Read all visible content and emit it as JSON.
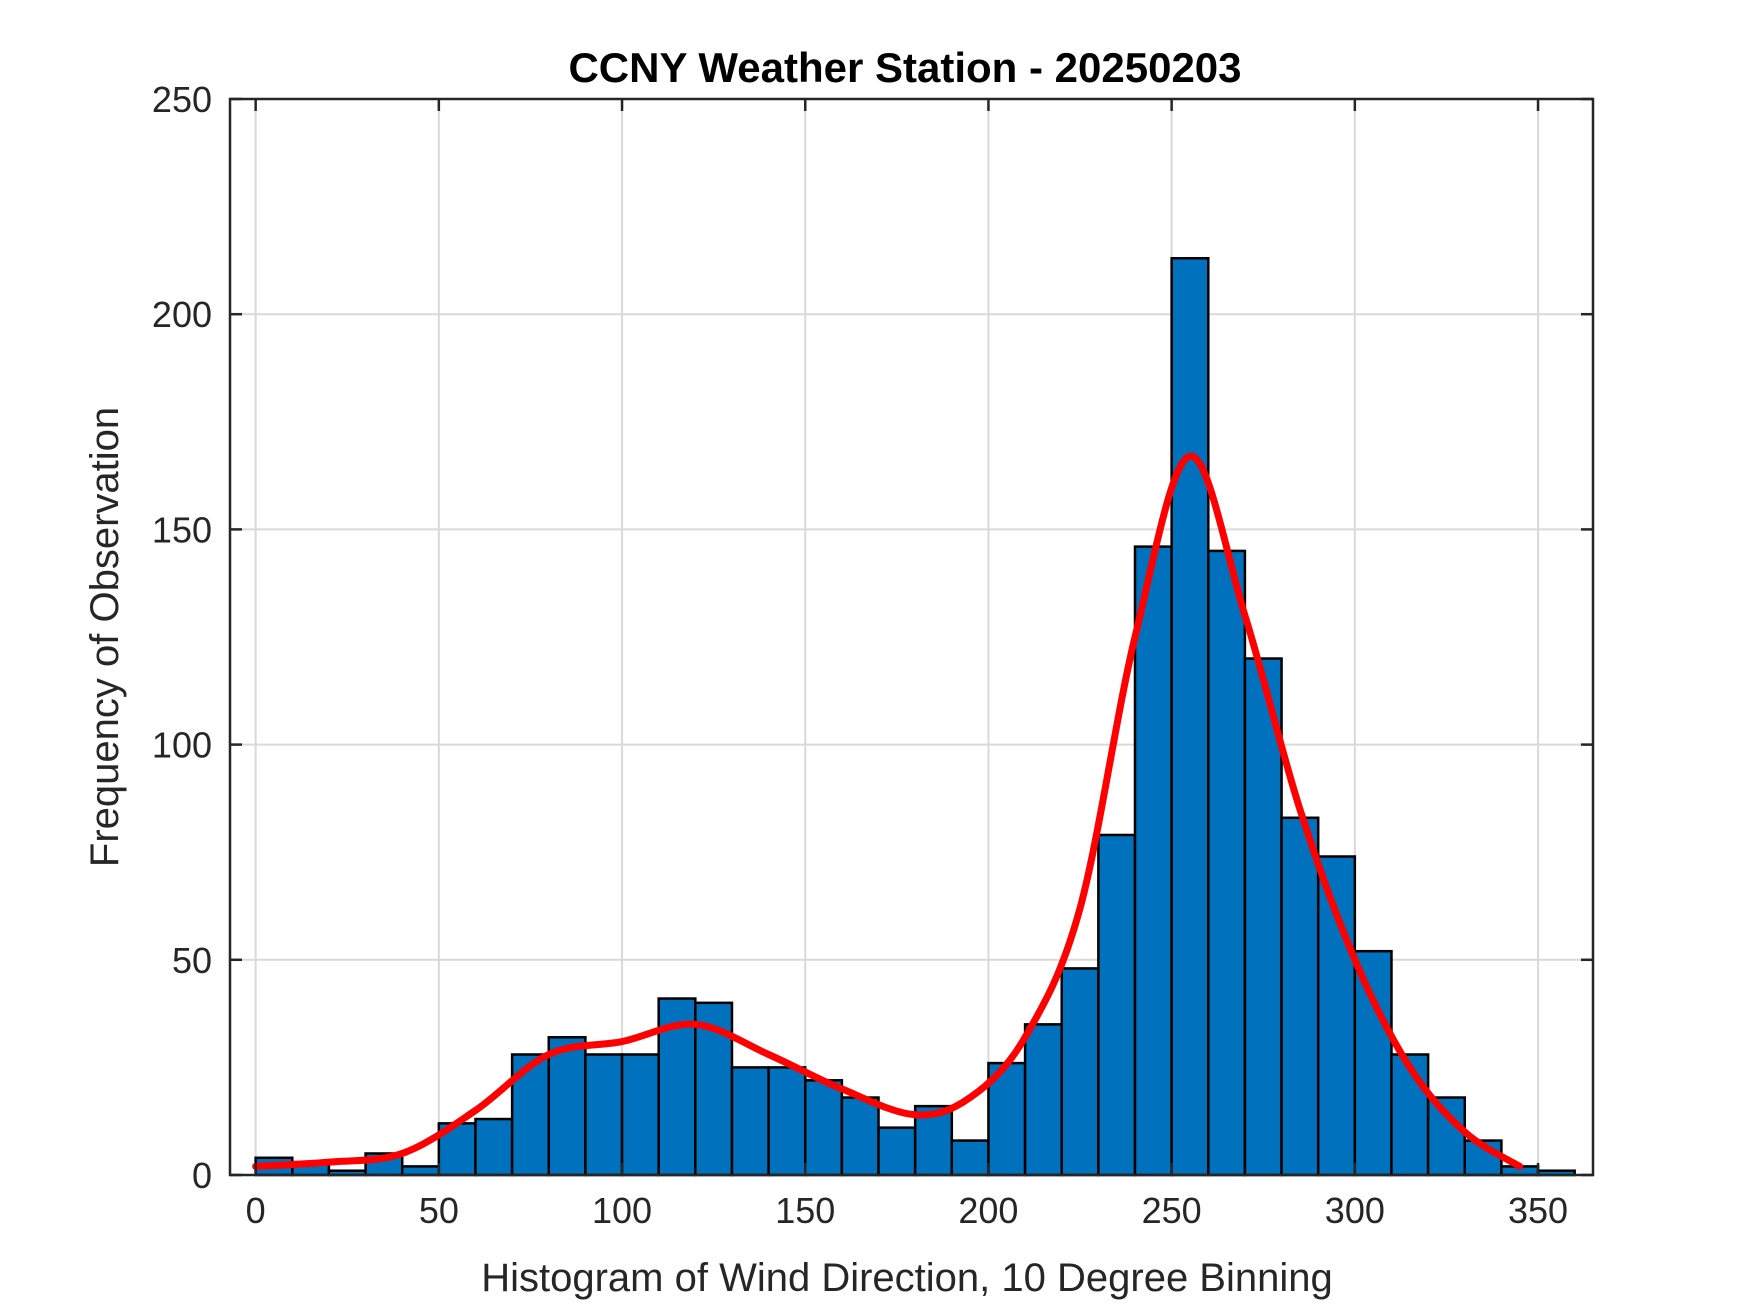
{
  "chart_data": {
    "type": "bar",
    "title": "CCNY Weather Station - 20250203",
    "xlabel": "Histogram of Wind Direction, 10 Degree Binning",
    "ylabel": "Frequency of Observation",
    "xlim": [
      -7,
      365
    ],
    "ylim": [
      0,
      250
    ],
    "xticks": [
      0,
      50,
      100,
      150,
      200,
      250,
      300,
      350
    ],
    "yticks": [
      0,
      50,
      100,
      150,
      200,
      250
    ],
    "grid": true,
    "bin_width": 10,
    "bin_starts": [
      0,
      10,
      20,
      30,
      40,
      50,
      60,
      70,
      80,
      90,
      100,
      110,
      120,
      130,
      140,
      150,
      160,
      170,
      180,
      190,
      200,
      210,
      220,
      230,
      240,
      250,
      260,
      270,
      280,
      290,
      300,
      310,
      320,
      330,
      340,
      350
    ],
    "values": [
      4,
      3,
      1,
      5,
      2,
      12,
      13,
      28,
      32,
      28,
      28,
      41,
      40,
      25,
      25,
      22,
      18,
      11,
      16,
      8,
      26,
      35,
      48,
      79,
      146,
      213,
      145,
      120,
      83,
      74,
      52,
      28,
      18,
      8,
      2,
      1
    ],
    "bar_color": "#0072BD",
    "fit_curve": {
      "color": "#FF0000",
      "x": [
        0,
        20,
        40,
        60,
        80,
        100,
        120,
        140,
        160,
        180,
        195,
        210,
        225,
        240,
        255,
        270,
        285,
        300,
        315,
        330,
        345
      ],
      "y": [
        2,
        3,
        5,
        15,
        28,
        31,
        35,
        28,
        20,
        14,
        18,
        32,
        62,
        125,
        167,
        130,
        85,
        50,
        25,
        10,
        2
      ]
    }
  }
}
